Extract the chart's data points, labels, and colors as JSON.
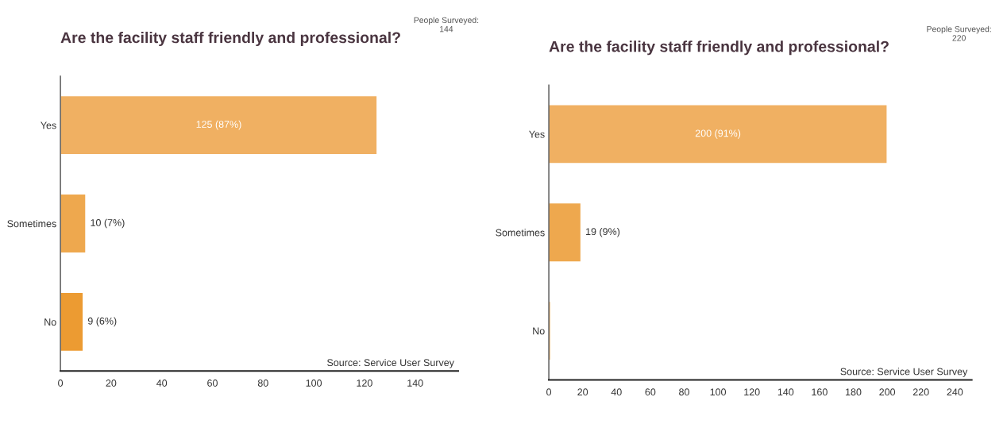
{
  "chart_data": [
    {
      "type": "bar",
      "orientation": "horizontal",
      "title": "Are the facility staff friendly and professional?",
      "categories": [
        "Yes",
        "Sometimes",
        "No"
      ],
      "values": [
        125,
        10,
        9
      ],
      "colors": [
        "#f0b062",
        "#eea84e",
        "#ec9b32"
      ],
      "value_labels": [
        "125 (87%)",
        "10 (7%)",
        "9 (6%)"
      ],
      "xlim": [
        0,
        157
      ],
      "xticks": [
        0,
        20,
        40,
        60,
        80,
        100,
        120,
        140
      ],
      "grid": false,
      "legend": false,
      "annotations": [
        "People Surveyed:\n144",
        "Source: Service User Survey"
      ]
    },
    {
      "type": "bar",
      "orientation": "horizontal",
      "title": "Are the facility staff friendly and professional?",
      "categories": [
        "Yes",
        "Sometimes",
        "No"
      ],
      "values": [
        200,
        19,
        1
      ],
      "colors": [
        "#f0b062",
        "#eea84e",
        "#e8a040"
      ],
      "value_labels": [
        "200 (91%)",
        "19 (9%)",
        null
      ],
      "xlim": [
        0,
        250
      ],
      "xticks": [
        0,
        20,
        40,
        60,
        80,
        100,
        120,
        140,
        160,
        180,
        200,
        220,
        240
      ],
      "grid": false,
      "legend": false,
      "annotations": [
        "People Surveyed:\n220",
        "Source: Service User Survey"
      ]
    }
  ]
}
